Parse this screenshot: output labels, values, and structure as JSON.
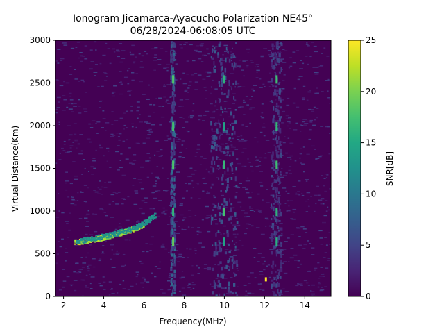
{
  "chart_data": {
    "type": "heatmap",
    "title": "Ionogram Jicamarca-Ayacucho Polarization NE45°",
    "subtitle": "06/28/2024-06:08:05 UTC",
    "xlabel": "Frequency(MHz)",
    "ylabel": "Virtual Distance(Km)",
    "xlim": [
      1.6,
      15.3
    ],
    "ylim": [
      0,
      3000
    ],
    "x_ticks": [
      2,
      4,
      6,
      8,
      10,
      12,
      14
    ],
    "y_ticks": [
      0,
      500,
      1000,
      1500,
      2000,
      2500,
      3000
    ],
    "colorbar": {
      "label": "SNR[dB]",
      "range": [
        0,
        25
      ],
      "ticks": [
        0,
        5,
        10,
        15,
        20,
        25
      ],
      "colormap": "viridis"
    },
    "features": [
      {
        "kind": "trace",
        "x": [
          2.5,
          3.0,
          3.5,
          4.0,
          4.5,
          5.0,
          5.5,
          5.9
        ],
        "y": [
          640,
          655,
          675,
          700,
          730,
          765,
          800,
          850
        ],
        "snr": 24
      },
      {
        "kind": "trace",
        "x": [
          2.6,
          3.5,
          4.5,
          5.5,
          6.0,
          6.5
        ],
        "y": [
          650,
          690,
          740,
          810,
          880,
          960
        ],
        "snr": 14
      },
      {
        "kind": "vertical_band",
        "x": [
          7.3,
          7.5
        ],
        "snr": 6
      },
      {
        "kind": "vertical_band",
        "x": [
          9.3,
          10.6
        ],
        "snr": 5
      },
      {
        "kind": "vertical_band",
        "x": [
          12.3,
          12.8
        ],
        "snr": 4
      },
      {
        "kind": "point",
        "x": 12.05,
        "y": 200,
        "snr": 25
      }
    ],
    "grid": false
  }
}
